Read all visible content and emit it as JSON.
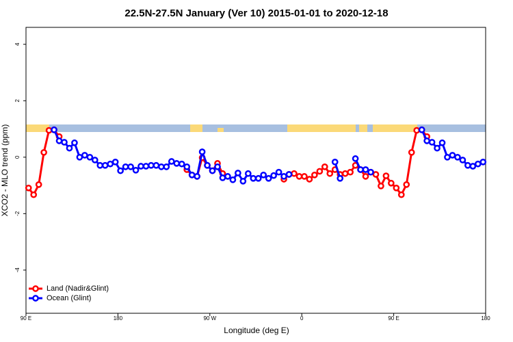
{
  "chart_data": {
    "type": "line",
    "title": "22.5N-27.5N January (Ver 10)   2015-01-01 to 2020-12-18",
    "x_label": "Longitude (deg E)",
    "y_label": "XCO2 - MLO trend (ppm)",
    "x": [
      92.5,
      97.5,
      102.5,
      107.5,
      112.5,
      117.5,
      122.5,
      127.5,
      132.5,
      137.5,
      142.5,
      147.5,
      152.5,
      157.5,
      162.5,
      167.5,
      172.5,
      177.5,
      182.5,
      187.5,
      192.5,
      197.5,
      202.5,
      207.5,
      212.5,
      217.5,
      222.5,
      227.5,
      232.5,
      237.5,
      242.5,
      247.5,
      252.5,
      257.5,
      262.5,
      267.5,
      272.5,
      277.5,
      282.5,
      287.5,
      292.5,
      297.5,
      302.5,
      307.5,
      312.5,
      317.5,
      322.5,
      327.5,
      332.5,
      337.5,
      342.5,
      347.5,
      352.5,
      357.5,
      362.5,
      367.5,
      372.5,
      377.5,
      382.5,
      387.5,
      392.5,
      397.5,
      402.5,
      407.5,
      412.5,
      417.5,
      422.5,
      427.5,
      432.5,
      437.5,
      442.5,
      447.5,
      452.5,
      457.5,
      462.5,
      467.5,
      472.5,
      477.5,
      482.5,
      487.5,
      492.5,
      497.5,
      502.5,
      507.5,
      512.5,
      517.5,
      522.5,
      527.5,
      532.5,
      537.5
    ],
    "series": [
      {
        "name": "Land (Nadir&Glint)",
        "color": "#ff0000",
        "values": [
          -1.09,
          -1.33,
          -0.97,
          0.17,
          0.95,
          0.97,
          0.73,
          null,
          null,
          null,
          null,
          null,
          null,
          null,
          null,
          null,
          null,
          null,
          null,
          null,
          null,
          null,
          null,
          null,
          null,
          null,
          null,
          null,
          null,
          null,
          null,
          -0.44,
          -0.63,
          -0.68,
          -0.02,
          -0.29,
          -0.48,
          -0.22,
          -0.58,
          null,
          null,
          null,
          null,
          null,
          null,
          null,
          null,
          null,
          null,
          null,
          -0.78,
          -0.61,
          -0.58,
          -0.68,
          -0.68,
          -0.78,
          -0.63,
          -0.5,
          -0.34,
          -0.58,
          -0.44,
          -0.61,
          -0.58,
          -0.53,
          -0.29,
          -0.44,
          -0.68,
          -0.53,
          -0.61,
          -1.02,
          -0.66,
          -0.92,
          -1.09,
          -1.33,
          -0.97,
          0.17,
          0.95,
          0.97,
          0.73,
          null,
          null,
          null,
          null,
          null,
          null,
          null,
          null,
          null,
          null,
          null
        ]
      },
      {
        "name": "Ocean (Glint)",
        "color": "#0000ff",
        "values": [
          null,
          null,
          null,
          null,
          null,
          0.97,
          0.58,
          0.53,
          0.32,
          0.51,
          0.0,
          0.07,
          0.0,
          -0.1,
          -0.29,
          -0.29,
          -0.24,
          -0.17,
          -0.48,
          -0.34,
          -0.34,
          -0.46,
          -0.32,
          -0.32,
          -0.29,
          -0.29,
          -0.34,
          -0.34,
          -0.15,
          -0.22,
          -0.24,
          -0.34,
          -0.63,
          -0.68,
          0.19,
          -0.29,
          -0.48,
          -0.34,
          -0.73,
          -0.68,
          -0.8,
          -0.56,
          -0.85,
          -0.58,
          -0.75,
          -0.75,
          -0.63,
          -0.75,
          -0.65,
          -0.53,
          -0.68,
          -0.61,
          null,
          null,
          null,
          null,
          null,
          null,
          null,
          null,
          -0.17,
          -0.75,
          null,
          null,
          -0.05,
          -0.44,
          -0.44,
          -0.53,
          null,
          null,
          null,
          null,
          null,
          null,
          null,
          null,
          null,
          0.97,
          0.58,
          0.53,
          0.32,
          0.51,
          0.0,
          0.07,
          0.0,
          -0.1,
          -0.29,
          -0.32,
          -0.24,
          -0.17
        ]
      }
    ],
    "xlim": [
      90,
      540
    ],
    "xticks": [
      {
        "value": 90,
        "label": "90 E"
      },
      180,
      {
        "value": 270,
        "label": "90 W"
      },
      {
        "value": 360,
        "label": "0"
      },
      {
        "value": 450,
        "label": "90 E"
      },
      {
        "value": 540,
        "label": "180"
      }
    ],
    "ylim": [
      -5.53,
      4.6
    ],
    "yticks": [
      -4,
      -2,
      0,
      2,
      4
    ],
    "legend": "bottom-left"
  }
}
